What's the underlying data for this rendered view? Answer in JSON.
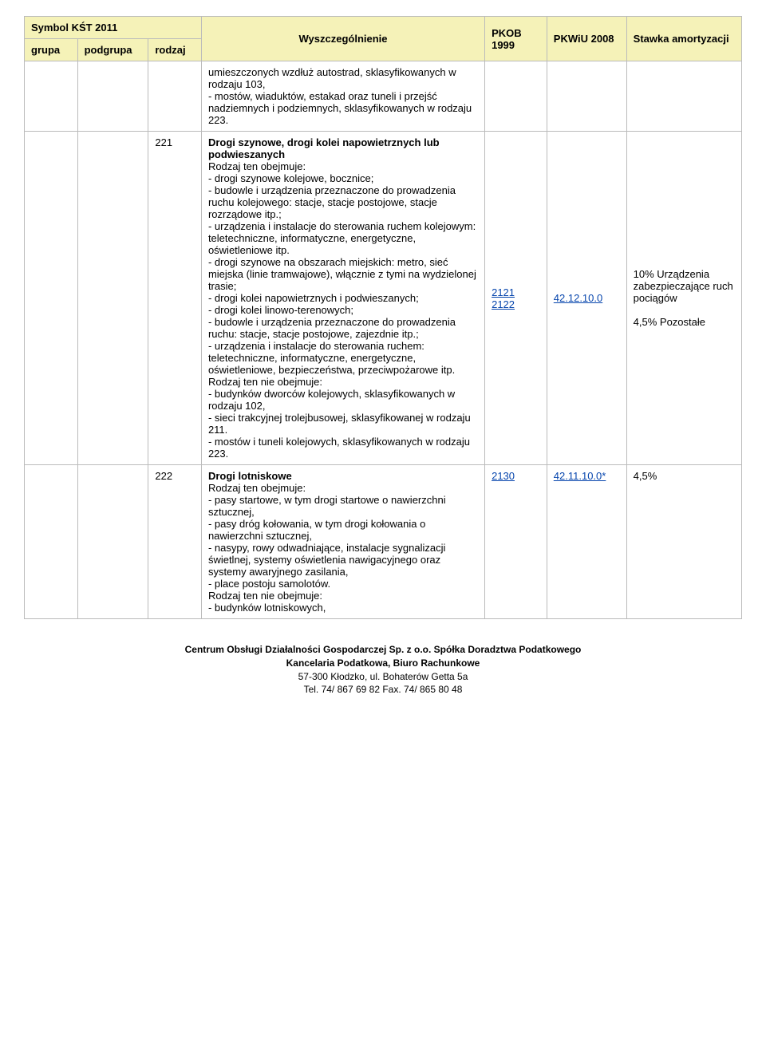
{
  "header": {
    "symbol_group_header": "Symbol KŚT 2011",
    "grupa": "grupa",
    "podgrupa": "podgrupa",
    "rodzaj": "rodzaj",
    "wyszczegolnienie": "Wyszczególnienie",
    "pkob": "PKOB 1999",
    "pkwiu": "PKWiU 2008",
    "stawka": "Stawka amortyzacji"
  },
  "rows": [
    {
      "rodzaj": "",
      "desc": "umieszczonych wzdłuż autostrad, sklasyfikowanych w rodzaju 103,\n- mostów, wiaduktów, estakad oraz tuneli i przejść nadziemnych i podziemnych, sklasyfikowanych w rodzaju 223.",
      "pkob": "",
      "pkwiu": "",
      "stawka": ""
    },
    {
      "rodzaj": "221",
      "title": "Drogi szynowe, drogi kolei napowietrznych lub podwieszanych",
      "desc_pre": "Rodzaj ten obejmuje:\n- drogi szynowe kolejowe, bocznice;\n- budowle i urządzenia przeznaczone do prowadzenia ruchu kolejowego: stacje, stacje postojowe, stacje rozrządowe itp.;\n- urządzenia i instalacje do sterowania ruchem kolejowym: teletechniczne, informatyczne, energetyczne, oświetleniowe itp.\n- drogi szynowe na obszarach miejskich: metro, sieć miejska (linie tramwajowe), włącznie z tymi na wydzielonej trasie;\n- drogi kolei napowietrznych i podwieszanych;\n- drogi kolei linowo-terenowych;\n- budowle i urządzenia przeznaczone do prowadzenia ruchu: stacje, stacje postojowe, zajezdnie itp.;\n- urządzenia i instalacje do sterowania ruchem: teletechniczne, informatyczne, energetyczne, oświetleniowe, bezpieczeństwa, przeciwpożarowe itp.\nRodzaj ten nie obejmuje:\n- budynków dworców kolejowych, sklasyfikowanych w rodzaju 102,\n- sieci trakcyjnej trolejbusowej, sklasyfikowanej w rodzaju 211.\n- mostów i tuneli kolejowych, sklasyfikowanych w rodzaju 223.",
      "pkob1": "2121",
      "pkob2": "2122",
      "pkwiu": "42.12.10.0",
      "stawka1": "10% Urządzenia zabezpieczające ruch pociągów",
      "stawka2": "4,5% Pozostałe"
    },
    {
      "rodzaj": "222",
      "title": "Drogi lotniskowe",
      "desc_pre": "Rodzaj ten obejmuje:\n- pasy startowe, w tym drogi startowe o nawierzchni sztucznej,\n- pasy dróg kołowania, w tym drogi kołowania o nawierzchni sztucznej,\n- nasypy, rowy odwadniające, instalacje sygnalizacji świetlnej, systemy oświetlenia nawigacyjnego oraz systemy awaryjnego zasilania,\n- place postoju samolotów.\nRodzaj ten nie obejmuje:\n- budynków lotniskowych,",
      "pkob": "2130",
      "pkwiu": "42.11.10.0*",
      "stawka": "4,5%"
    }
  ],
  "footer": {
    "line1": "Centrum Obsługi Działalności Gospodarczej Sp. z o.o.   Spółka Doradztwa Podatkowego",
    "line2": "Kancelaria Podatkowa,  Biuro Rachunkowe",
    "line3": "57-300 Kłodzko, ul. Bohaterów Getta 5a",
    "line4": "Tel. 74/ 867 69 82  Fax. 74/ 865 80 48"
  }
}
